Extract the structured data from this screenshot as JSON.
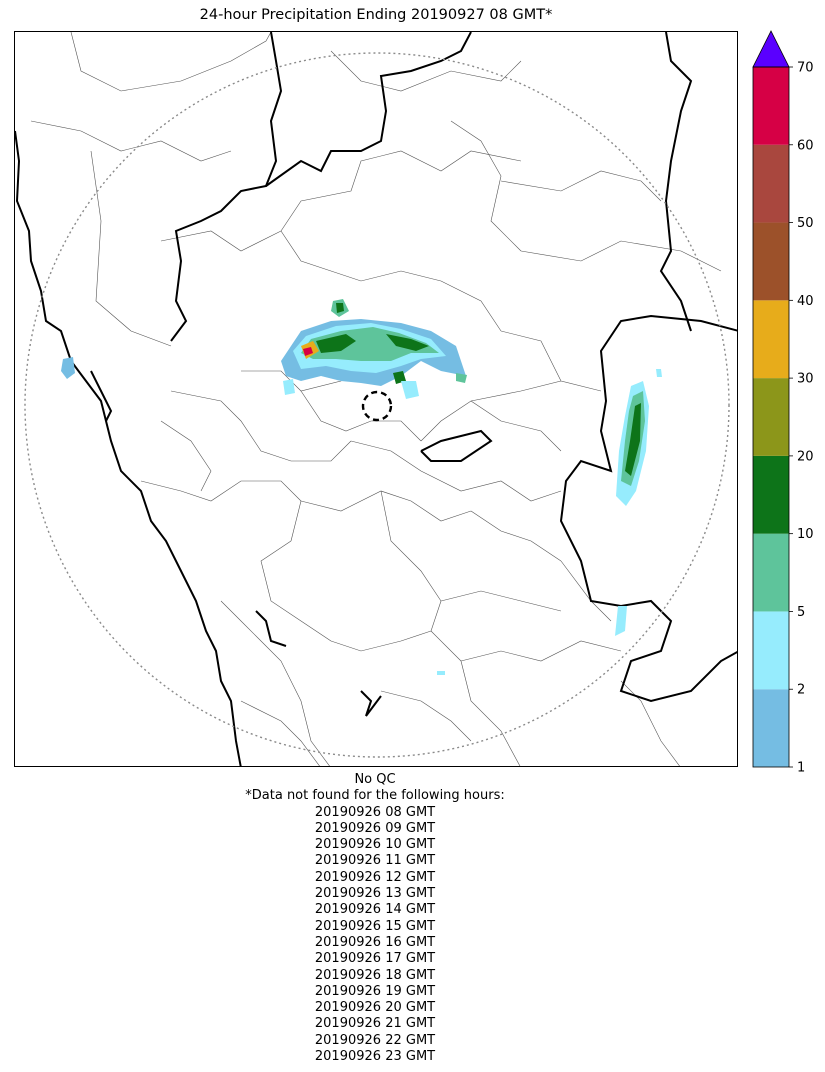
{
  "title": "24-hour Precipitation Ending 20190927 08 GMT*",
  "legend": {
    "ticks": [
      "1",
      "2",
      "5",
      "10",
      "20",
      "30",
      "40",
      "50",
      "60",
      "70"
    ],
    "colors": [
      "#75bde3",
      "#96ecfd",
      "#5ec49b",
      "#0d7419",
      "#8c961a",
      "#e7ac1b",
      "#9c512a",
      "#a9473e",
      "#d60045"
    ],
    "extend_color": "#5a00ff",
    "extend": "max"
  },
  "footer": {
    "qc": "No QC",
    "missing_header": "*Data not found for the following hours:",
    "missing_hours": [
      "20190926 08 GMT",
      "20190926 09 GMT",
      "20190926 10 GMT",
      "20190926 11 GMT",
      "20190926 12 GMT",
      "20190926 13 GMT",
      "20190926 14 GMT",
      "20190926 15 GMT",
      "20190926 16 GMT",
      "20190926 17 GMT",
      "20190926 18 GMT",
      "20190926 19 GMT",
      "20190926 20 GMT",
      "20190926 21 GMT",
      "20190926 22 GMT",
      "20190926 23 GMT"
    ]
  },
  "colors": {
    "radar_range_ring": "#8a8a8a",
    "state_border": "#000000",
    "district_border": "#555555"
  }
}
